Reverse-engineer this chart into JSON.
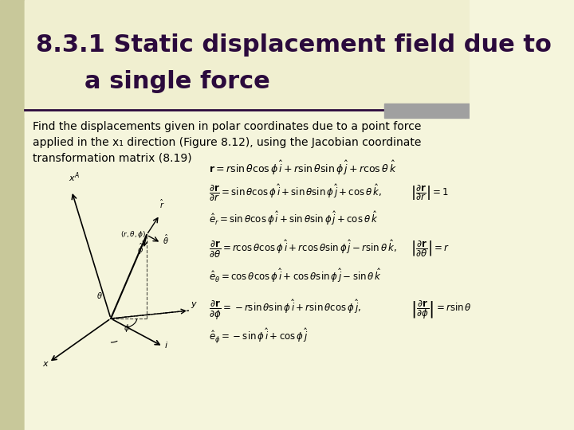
{
  "bg_color": "#f5f5dc",
  "left_stripe_color": "#c8c89a",
  "title_line1": "8.3.1 Static displacement field due to",
  "title_line2": "a single force",
  "title_color": "#2b0a3d",
  "title_fontsize": 22,
  "separator_color": "#2b0a3d",
  "gray_rect_color": "#a0a0a0",
  "body_text": "Find the displacements given in polar coordinates due to a point force\napplied in the x₁ direction (Figure 8.12), using the Jacobian coordinate\ntransformation matrix (8.19)",
  "body_fontsize": 10,
  "math_color": "#000000",
  "eq_r": "$\\mathbf{r} = r\\sin\\theta\\cos\\phi\\,\\hat{i} + r\\sin\\theta\\sin\\phi\\,\\hat{j} + r\\cos\\theta\\,\\hat{k}$",
  "eq_dr_dr": "$\\dfrac{\\partial\\mathbf{r}}{\\partial r} = \\sin\\theta\\cos\\phi\\,\\hat{i} + \\sin\\theta\\sin\\phi\\,\\hat{j} + \\cos\\theta\\,\\hat{k},$",
  "eq_dr_dr_norm": "$\\left|\\dfrac{\\partial\\mathbf{r}}{\\partial r}\\right| = 1$",
  "eq_er": "$\\hat{e}_r = \\sin\\theta\\cos\\phi\\,\\hat{i} + \\sin\\theta\\sin\\phi\\,\\hat{j} + \\cos\\theta\\,\\hat{k}$",
  "eq_dr_dth": "$\\dfrac{\\partial\\mathbf{r}}{\\partial\\theta} = r\\cos\\theta\\cos\\phi\\,\\hat{i} + r\\cos\\theta\\sin\\phi\\,\\hat{j} - r\\sin\\theta\\,\\hat{k},$",
  "eq_dr_dth_norm": "$\\left|\\dfrac{\\partial\\mathbf{r}}{\\partial\\theta}\\right| = r$",
  "eq_eth": "$\\hat{e}_\\theta = \\cos\\theta\\cos\\phi\\,\\hat{i} + \\cos\\theta\\sin\\phi\\,\\hat{j} - \\sin\\theta\\,\\hat{k}$",
  "eq_dr_dphi": "$\\dfrac{\\partial\\mathbf{r}}{\\partial\\phi} = -r\\sin\\theta\\sin\\phi\\,\\hat{i} + r\\sin\\theta\\cos\\phi\\,\\hat{j},$",
  "eq_dr_dphi_norm": "$\\left|\\dfrac{\\partial\\mathbf{r}}{\\partial\\phi}\\right| = r\\sin\\theta$",
  "eq_ephi": "$\\hat{e}_\\phi = -\\sin\\phi\\,\\hat{i} + \\cos\\phi\\,\\hat{j}$"
}
